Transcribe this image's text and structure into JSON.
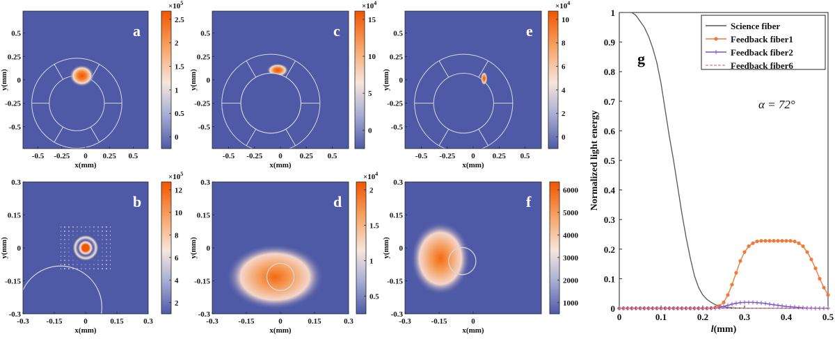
{
  "colors": {
    "background": "#4e5aa6",
    "mid": "#f6e6dc",
    "peak": "#f05500",
    "guide": "#d8d8e8",
    "science": "#555555",
    "fiber1": "#f07a3a",
    "fiber2": "#7a4fd0",
    "fiber6": "#e58aa0"
  },
  "panels": [
    {
      "letter": "a",
      "x_label": "x(mm)",
      "y_label": "y(mm)",
      "x_ticks": [
        "-0.5",
        "-0.25",
        "0",
        "0.25",
        "0.5"
      ],
      "y_ticks": [
        "0.5",
        "0.25",
        "0",
        "-0.25",
        "-0.5"
      ],
      "colorbar_exponent": "×10",
      "colorbar_power": "5",
      "colorbar_ticks": [
        "2.5",
        "2",
        "1.5",
        "1",
        "0.5",
        "0"
      ],
      "spot_shape": "spot",
      "guide_shape": "ring-segments"
    },
    {
      "letter": "b",
      "x_label": "x(mm)",
      "y_label": "y(mm)",
      "x_ticks": [
        "-0.3",
        "-0.15",
        "0",
        "0.15",
        "0.3"
      ],
      "y_ticks": [
        "0.3",
        "0.15",
        "0",
        "-0.15",
        "-0.3"
      ],
      "colorbar_exponent": "×10",
      "colorbar_power": "5",
      "colorbar_ticks": [
        "12",
        "10",
        "8",
        "6",
        "4",
        "2"
      ],
      "spot_shape": "airy-rings",
      "guide_shape": "large-circle"
    },
    {
      "letter": "c",
      "x_label": "x(mm)",
      "y_label": "y(mm)",
      "x_ticks": [
        "-0.5",
        "-0.25",
        "0",
        "0.25",
        "0.5"
      ],
      "y_ticks": [
        "0.5",
        "0.25",
        "0",
        "-0.25",
        "-0.5"
      ],
      "colorbar_exponent": "×10",
      "colorbar_power": "4",
      "colorbar_ticks": [
        "15",
        "10",
        "5",
        "0"
      ],
      "spot_shape": "crescent",
      "guide_shape": "ring-segments"
    },
    {
      "letter": "d",
      "x_label": "x(mm)",
      "y_label": "y(mm)",
      "x_ticks": [
        "-0.3",
        "-0.15",
        "0",
        "0.15",
        "0.3"
      ],
      "y_ticks": [
        "0.3",
        "0.15",
        "0",
        "-0.15",
        "-0.3"
      ],
      "colorbar_exponent": "×10",
      "colorbar_power": "4",
      "colorbar_ticks": [
        "2",
        "1.5",
        "1",
        "0.5"
      ],
      "spot_shape": "broad-blob",
      "guide_shape": "small-circle"
    },
    {
      "letter": "e",
      "x_label": "x(mm)",
      "y_label": "y(mm)",
      "x_ticks": [
        "-0.5",
        "-0.25",
        "0",
        "0.25",
        "0.5"
      ],
      "y_ticks": [
        "0.5",
        "0.25",
        "0",
        "-0.25",
        "-0.5"
      ],
      "colorbar_exponent": "×10",
      "colorbar_power": "4",
      "colorbar_ticks": [
        "10",
        "8",
        "6",
        "4",
        "2",
        "0"
      ],
      "spot_shape": "narrow-spot",
      "guide_shape": "ring-segments"
    },
    {
      "letter": "f",
      "x_label": "x(mm)",
      "y_label": "y(mm)",
      "x_ticks": [
        "-0.3",
        "-0.15",
        "0"
      ],
      "y_ticks": [
        "0.3",
        "0.15",
        "0",
        "-0.15",
        "-0.3"
      ],
      "colorbar_exponent": "",
      "colorbar_power": "",
      "colorbar_ticks": [
        "6000",
        "5000",
        "4000",
        "3000",
        "2000",
        "1000"
      ],
      "spot_shape": "edge-blob",
      "guide_shape": "small-circle"
    }
  ],
  "chart_data": {
    "type": "line",
    "panel_letter": "g",
    "annotation": "α = 72°",
    "xlabel_italic": "l",
    "xlabel_rest": "(mm)",
    "ylabel": "Normalized light energy",
    "xlim": [
      0,
      0.5
    ],
    "ylim": [
      0,
      1
    ],
    "x_ticks": [
      "0",
      "0.1",
      "0.2",
      "0.3",
      "0.4",
      "0.5"
    ],
    "y_ticks": [
      "0",
      "0.1",
      "0.2",
      "0.3",
      "0.4",
      "0.5",
      "0.6",
      "0.7",
      "0.8",
      "0.9",
      "1"
    ],
    "x": [
      0,
      0.01,
      0.02,
      0.03,
      0.04,
      0.05,
      0.06,
      0.07,
      0.08,
      0.09,
      0.1,
      0.11,
      0.12,
      0.13,
      0.14,
      0.15,
      0.16,
      0.17,
      0.18,
      0.19,
      0.2,
      0.21,
      0.22,
      0.23,
      0.24,
      0.25,
      0.26,
      0.27,
      0.28,
      0.29,
      0.3,
      0.31,
      0.32,
      0.33,
      0.34,
      0.35,
      0.36,
      0.37,
      0.38,
      0.39,
      0.4,
      0.41,
      0.42,
      0.43,
      0.44,
      0.45,
      0.46,
      0.47,
      0.48,
      0.49,
      0.5
    ],
    "series": [
      {
        "name": "Science fiber",
        "values": [
          1.0,
          1.0,
          1.0,
          1.0,
          0.99,
          0.97,
          0.95,
          0.92,
          0.88,
          0.83,
          0.76,
          0.67,
          0.58,
          0.5,
          0.41,
          0.32,
          0.24,
          0.17,
          0.11,
          0.07,
          0.045,
          0.03,
          0.02,
          0.012,
          0.008,
          0.005,
          0.003,
          0.002,
          0.001,
          0.001,
          0.0,
          0.0,
          0.0,
          0.0,
          0.0,
          0.0,
          0.0,
          0.0,
          0.0,
          0.0,
          0.0,
          0.0,
          0.0,
          0.0,
          0.0,
          0.0,
          0.0,
          0.0,
          0.0,
          0.0,
          0.0
        ]
      },
      {
        "name": "Feedback fiber1",
        "values": [
          0.0,
          0.0,
          0.0,
          0.0,
          0.0,
          0.0,
          0.0,
          0.0,
          0.0,
          0.0,
          0.0,
          0.0,
          0.0,
          0.0,
          0.0,
          0.0,
          0.0,
          0.0,
          0.0,
          0.0,
          0.0,
          0.0,
          0.001,
          0.003,
          0.008,
          0.02,
          0.045,
          0.08,
          0.12,
          0.16,
          0.19,
          0.21,
          0.22,
          0.226,
          0.228,
          0.228,
          0.228,
          0.228,
          0.228,
          0.228,
          0.228,
          0.228,
          0.226,
          0.22,
          0.21,
          0.19,
          0.165,
          0.135,
          0.1,
          0.07,
          0.045
        ]
      },
      {
        "name": "Feedback fiber2",
        "values": [
          0.0,
          0.0,
          0.0,
          0.0,
          0.0,
          0.0,
          0.0,
          0.0,
          0.0,
          0.0,
          0.0,
          0.0,
          0.0,
          0.0,
          0.0,
          0.0,
          0.0,
          0.0,
          0.0,
          0.0,
          0.0,
          0.0,
          0.0,
          0.0,
          0.002,
          0.006,
          0.01,
          0.014,
          0.017,
          0.019,
          0.02,
          0.02,
          0.02,
          0.019,
          0.018,
          0.016,
          0.014,
          0.012,
          0.01,
          0.008,
          0.006,
          0.005,
          0.004,
          0.003,
          0.002,
          0.001,
          0.001,
          0.0,
          0.0,
          0.0,
          0.0
        ]
      },
      {
        "name": "Feedback fiber6",
        "values": [
          0.0,
          0.0,
          0.0,
          0.0,
          0.0,
          0.0,
          0.0,
          0.0,
          0.0,
          0.0,
          0.0,
          0.0,
          0.0,
          0.0,
          0.0,
          0.0,
          0.0,
          0.0,
          0.0,
          0.0,
          0.0,
          0.0,
          0.0,
          0.0,
          0.0,
          0.0,
          0.0,
          0.0,
          0.0,
          0.0,
          0.0,
          0.0,
          0.0,
          0.0,
          0.0,
          0.0,
          0.0,
          0.0,
          0.0,
          0.0,
          0.0,
          0.0,
          0.0,
          0.0,
          0.0,
          0.0,
          0.0,
          0.0,
          0.0,
          0.0,
          0.0
        ]
      }
    ]
  }
}
